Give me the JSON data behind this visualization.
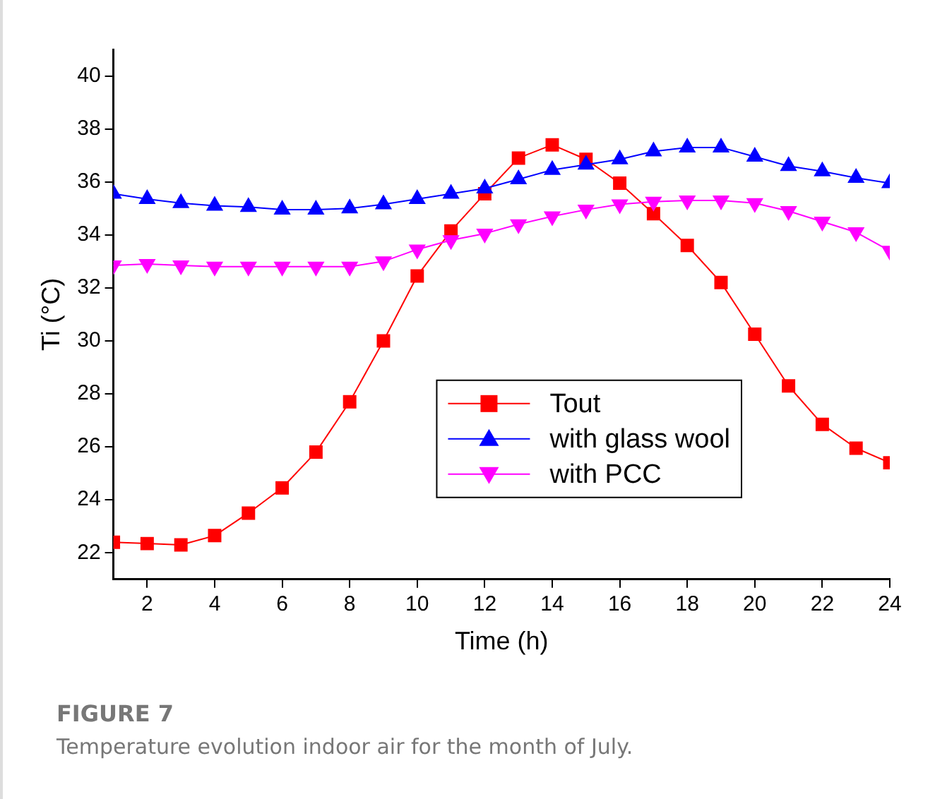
{
  "chart_data": {
    "type": "line",
    "title": "FIGURE 7",
    "xlabel": "Time (h)",
    "ylabel": "Ti (°C)",
    "x": [
      1,
      2,
      3,
      4,
      5,
      6,
      7,
      8,
      9,
      10,
      11,
      12,
      13,
      14,
      15,
      16,
      17,
      18,
      19,
      20,
      21,
      22,
      23,
      24
    ],
    "series": [
      {
        "name": "Tout",
        "color": "#ff0000",
        "marker": "square",
        "values": [
          22.4,
          22.35,
          22.3,
          22.65,
          23.5,
          24.45,
          25.8,
          27.7,
          30.0,
          32.45,
          34.15,
          35.55,
          36.9,
          37.4,
          36.85,
          35.95,
          34.8,
          33.6,
          32.2,
          30.25,
          28.3,
          26.85,
          25.95,
          25.4
        ]
      },
      {
        "name": "with glass wool",
        "color": "#0000ff",
        "marker": "triangle",
        "values": [
          35.55,
          35.35,
          35.2,
          35.1,
          35.05,
          34.95,
          34.95,
          35.0,
          35.15,
          35.35,
          35.55,
          35.75,
          36.1,
          36.45,
          36.65,
          36.85,
          37.15,
          37.3,
          37.3,
          36.95,
          36.6,
          36.4,
          36.15,
          35.95
        ]
      },
      {
        "name": "with PCC",
        "color": "#ff00ff",
        "marker": "triangle-down",
        "values": [
          32.85,
          32.9,
          32.85,
          32.8,
          32.8,
          32.8,
          32.8,
          32.8,
          33.0,
          33.45,
          33.8,
          34.05,
          34.4,
          34.7,
          34.95,
          35.15,
          35.25,
          35.3,
          35.3,
          35.2,
          34.9,
          34.5,
          34.1,
          33.4
        ]
      }
    ],
    "xlim": [
      1,
      24
    ],
    "xticks": [
      2,
      4,
      6,
      8,
      10,
      12,
      14,
      16,
      18,
      20,
      22,
      24
    ],
    "ylim": [
      21,
      41
    ],
    "yticks": [
      22,
      24,
      26,
      28,
      30,
      32,
      34,
      36,
      38,
      40
    ],
    "grid": false,
    "legend": "bottom right",
    "line_style": "solid",
    "annotations": [
      "Temperature evolution indoor air for the month of July."
    ]
  }
}
